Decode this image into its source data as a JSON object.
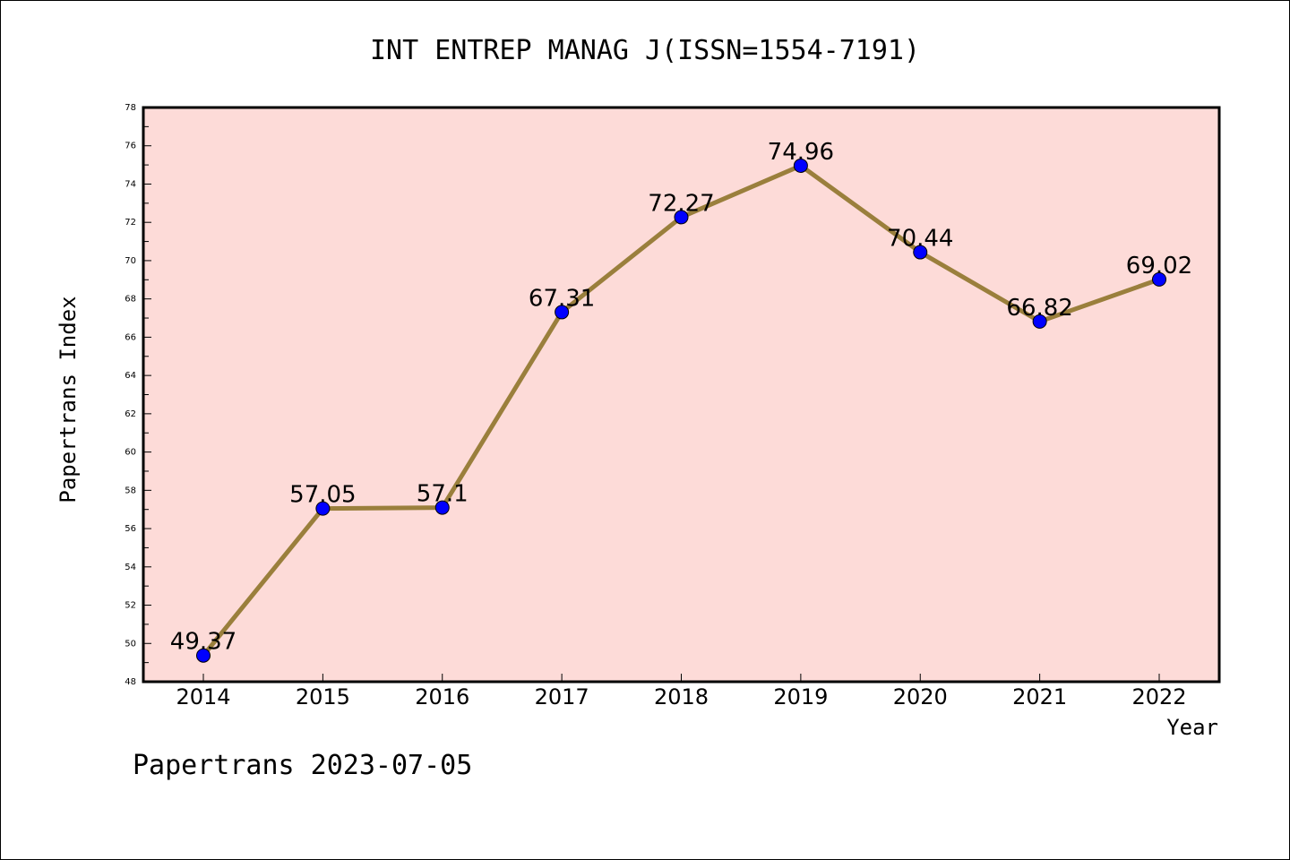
{
  "chart_data": {
    "type": "line",
    "title": "INT ENTREP MANAG J(ISSN=1554-7191)",
    "xlabel": "Year",
    "ylabel": "Papertrans Index",
    "categories": [
      "2014",
      "2015",
      "2016",
      "2017",
      "2018",
      "2019",
      "2020",
      "2021",
      "2022"
    ],
    "series": [
      {
        "values": [
          49.37,
          57.05,
          57.1,
          67.31,
          72.27,
          74.96,
          70.44,
          66.82,
          69.02
        ],
        "labels": [
          "49.37",
          "57.05",
          "57.1",
          "67.31",
          "72.27",
          "74.96",
          "70.44",
          "66.82",
          "69.02"
        ],
        "line_color": "#9a7f3c",
        "marker_color": "#0000ff"
      }
    ],
    "ylim": [
      48,
      78
    ],
    "yticks": [
      "48",
      "50",
      "52",
      "54",
      "56",
      "58",
      "60",
      "62",
      "64",
      "66",
      "68",
      "70",
      "72",
      "74",
      "76",
      "78"
    ],
    "plot_background": "#fddbd8",
    "grid": false,
    "legend": "none"
  },
  "footer": "Papertrans 2023-07-05"
}
